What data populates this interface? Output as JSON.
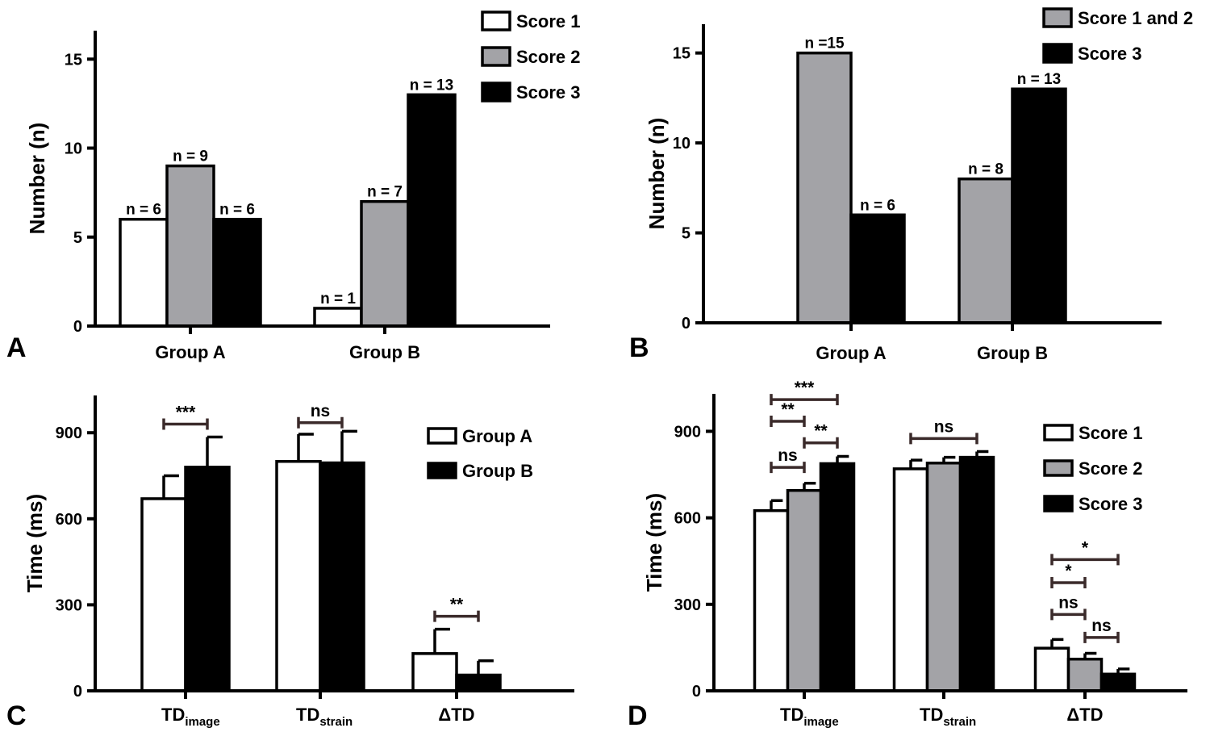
{
  "colors": {
    "white": "#ffffff",
    "gray": "#a3a3a7",
    "black": "#000000",
    "sig_line": "#3a2a2a"
  },
  "chart_data": [
    {
      "panel": "A",
      "type": "bar",
      "ylabel": "Number (n)",
      "ylim": [
        0,
        16.6
      ],
      "yticks": [
        0,
        5,
        10,
        15
      ],
      "categories": [
        "Group A",
        "Group B"
      ],
      "series": [
        {
          "name": "Score 1",
          "color": "white",
          "values": [
            6,
            1
          ],
          "labels": [
            "n = 6",
            "n = 1"
          ]
        },
        {
          "name": "Score 2",
          "color": "gray",
          "values": [
            9,
            7
          ],
          "labels": [
            "n = 9",
            "n = 7"
          ]
        },
        {
          "name": "Score 3",
          "color": "black",
          "values": [
            6,
            13
          ],
          "labels": [
            "n = 6",
            "n = 13"
          ]
        }
      ],
      "legend": "top-right"
    },
    {
      "panel": "B",
      "type": "bar",
      "ylabel": "Number (n)",
      "ylim": [
        0,
        16.6
      ],
      "yticks": [
        0,
        5,
        10,
        15
      ],
      "categories": [
        "Group A",
        "Group B"
      ],
      "series": [
        {
          "name": "Score 1 and 2",
          "color": "gray",
          "values": [
            15,
            8
          ],
          "labels": [
            "n =15",
            "n = 8"
          ]
        },
        {
          "name": "Score 3",
          "color": "black",
          "values": [
            6,
            13
          ],
          "labels": [
            "n = 6",
            "n = 13"
          ]
        }
      ],
      "legend": "top-right"
    },
    {
      "panel": "C",
      "type": "bar",
      "ylabel": "Time (ms)",
      "ylim": [
        0,
        1030
      ],
      "yticks": [
        0,
        300,
        600,
        900
      ],
      "categories": [
        {
          "main": "TD",
          "sub": "image"
        },
        {
          "main": "TD",
          "sub": "strain"
        },
        {
          "main": "ΔTD",
          "sub": ""
        }
      ],
      "series": [
        {
          "name": "Group A",
          "color": "white",
          "values": [
            670,
            800,
            130
          ],
          "errors": [
            80,
            95,
            85
          ]
        },
        {
          "name": "Group B",
          "color": "black",
          "values": [
            780,
            795,
            55
          ],
          "errors": [
            105,
            110,
            50
          ]
        }
      ],
      "significance": [
        {
          "cat": 0,
          "from": 0,
          "to": 1,
          "y": 930,
          "label": "***"
        },
        {
          "cat": 1,
          "from": 0,
          "to": 1,
          "y": 935,
          "label": "ns"
        },
        {
          "cat": 2,
          "from": 0,
          "to": 1,
          "y": 260,
          "label": "**"
        }
      ],
      "legend": "right"
    },
    {
      "panel": "D",
      "type": "bar",
      "ylabel": "Time (ms)",
      "ylim": [
        0,
        1030
      ],
      "yticks": [
        0,
        300,
        600,
        900
      ],
      "categories": [
        {
          "main": "TD",
          "sub": "image"
        },
        {
          "main": "TD",
          "sub": "strain"
        },
        {
          "main": "ΔTD",
          "sub": ""
        }
      ],
      "series": [
        {
          "name": "Score 1",
          "color": "white",
          "values": [
            625,
            770,
            148
          ],
          "errors": [
            35,
            30,
            30
          ]
        },
        {
          "name": "Score 2",
          "color": "gray",
          "values": [
            695,
            790,
            110
          ],
          "errors": [
            25,
            20,
            20
          ]
        },
        {
          "name": "Score 3",
          "color": "black",
          "values": [
            788,
            810,
            58
          ],
          "errors": [
            25,
            20,
            18
          ]
        }
      ],
      "significance": [
        {
          "cat": 0,
          "from": 0,
          "to": 2,
          "y": 1010,
          "label": "***"
        },
        {
          "cat": 0,
          "from": 0,
          "to": 1,
          "y": 935,
          "label": "**"
        },
        {
          "cat": 0,
          "from": 1,
          "to": 2,
          "y": 860,
          "label": "**"
        },
        {
          "cat": 0,
          "from": 0,
          "to": 1,
          "y": 775,
          "label": "ns"
        },
        {
          "cat": 1,
          "from": 0,
          "to": 2,
          "y": 875,
          "label": "ns"
        },
        {
          "cat": 2,
          "from": 0,
          "to": 2,
          "y": 455,
          "label": "*"
        },
        {
          "cat": 2,
          "from": 0,
          "to": 1,
          "y": 375,
          "label": "*"
        },
        {
          "cat": 2,
          "from": 0,
          "to": 1,
          "y": 265,
          "label": "ns"
        },
        {
          "cat": 2,
          "from": 1,
          "to": 2,
          "y": 185,
          "label": "ns"
        }
      ],
      "legend": "right"
    }
  ]
}
